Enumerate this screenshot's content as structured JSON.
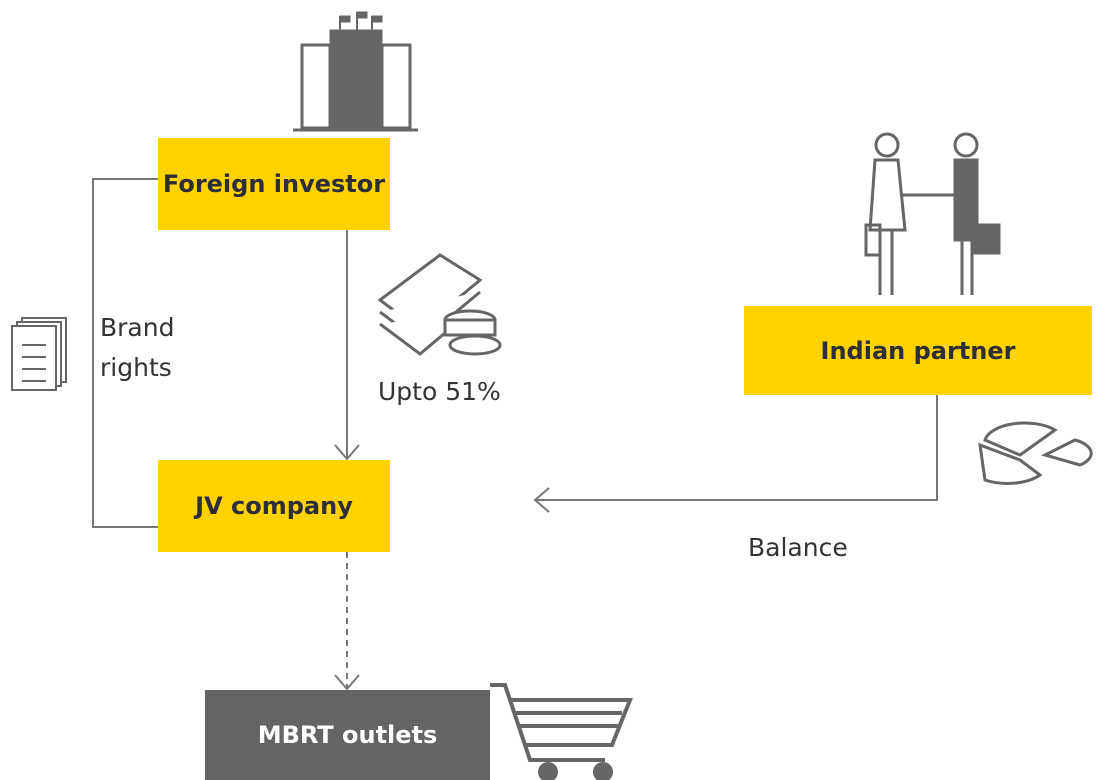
{
  "nodes": [
    {
      "label": "Foreign investor"
    },
    {
      "label": "Indian partner"
    },
    {
      "label": "JV company"
    },
    {
      "label": "MBRT outlets"
    }
  ],
  "edges": [
    {
      "label": "Brand rights"
    },
    {
      "label": "Upto 51%"
    },
    {
      "label": "Balance"
    }
  ]
}
